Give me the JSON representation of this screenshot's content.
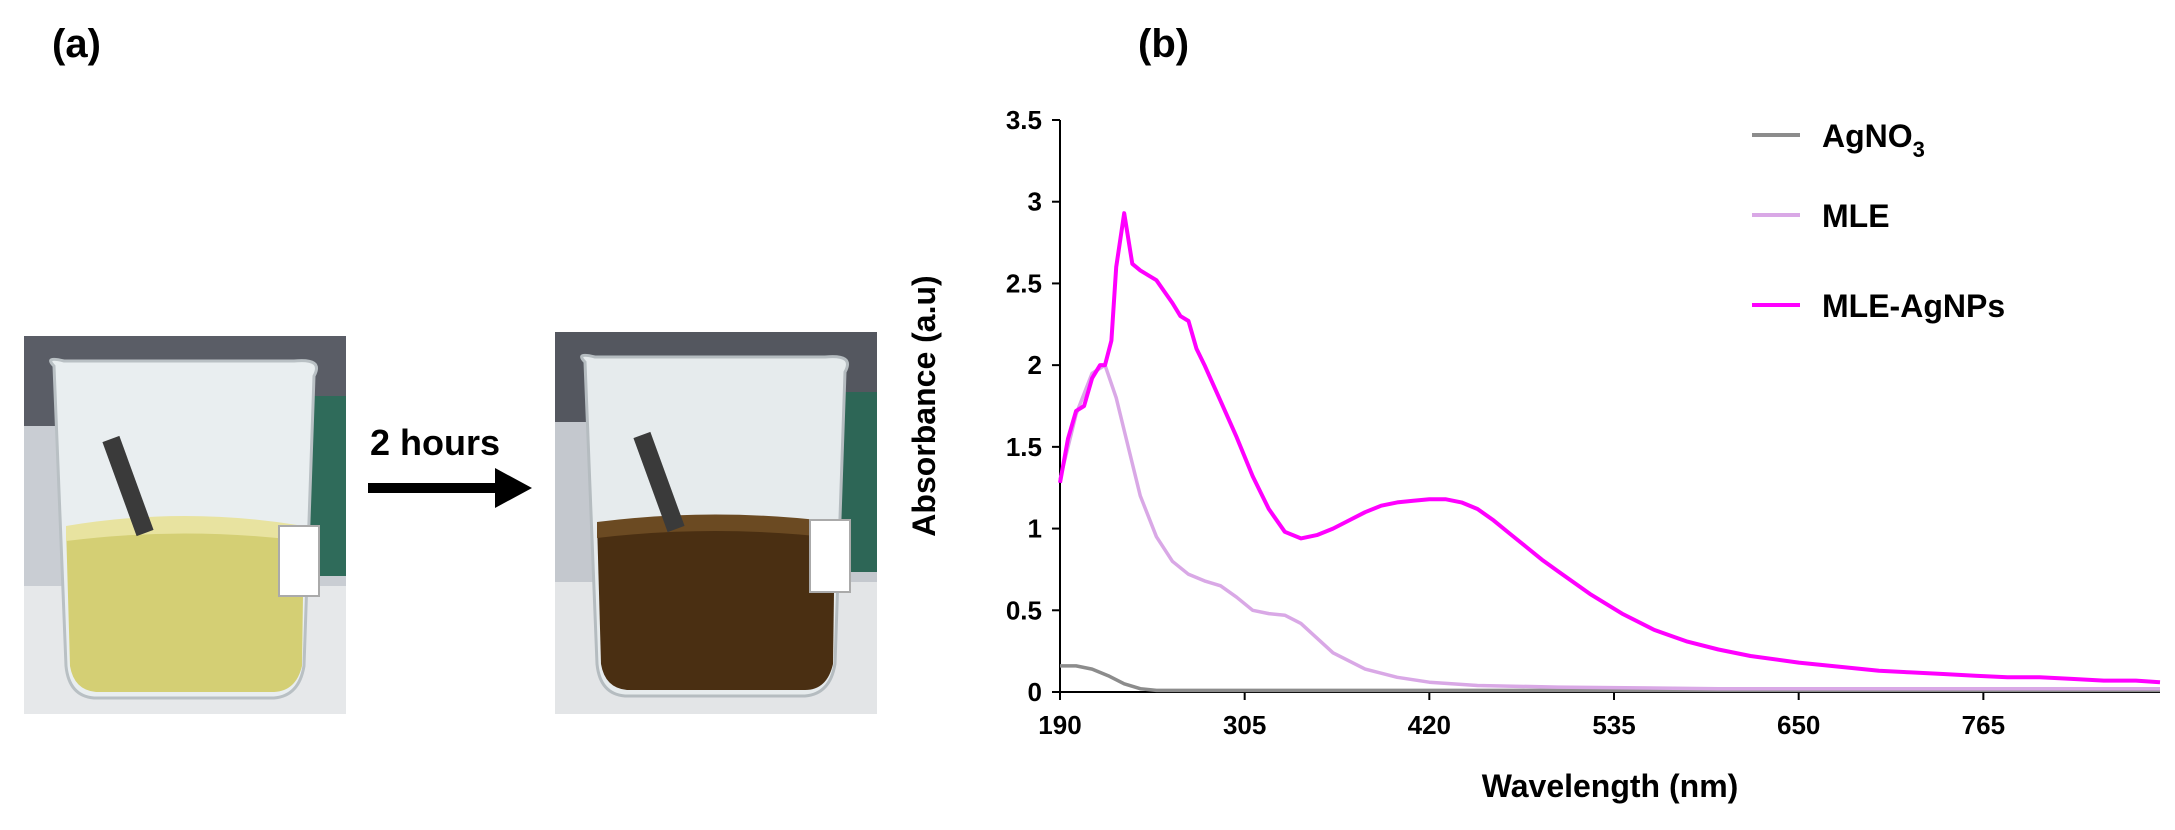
{
  "panels": {
    "a": "(a)",
    "b": "(b)"
  },
  "photos": {
    "before_desc": "beaker-yellow-extract",
    "after_desc": "beaker-dark-brown-agnps",
    "arrow_label": "2 hours"
  },
  "colors": {
    "agno3": "#8c8c8c",
    "mle": "#d9a8e6",
    "mle_agnps": "#ff00ff",
    "axis": "#000000",
    "beaker_yellow": "#d4cf74",
    "beaker_brown": "#4a2f12"
  },
  "chart_data": {
    "type": "line",
    "title": "",
    "xlabel": "Wavelength (nm)",
    "ylabel": "Absorbance (a.u)",
    "xlim": [
      190,
      875
    ],
    "ylim": [
      0,
      3.5
    ],
    "x_ticks": [
      190,
      305,
      420,
      535,
      650,
      765
    ],
    "x_tick_labels": [
      "190",
      "305",
      "420",
      "535",
      "650",
      "765"
    ],
    "y_ticks": [
      0,
      0.5,
      1,
      1.5,
      2,
      2.5,
      3,
      3.5
    ],
    "y_tick_labels": [
      "0",
      "0.5",
      "1",
      "1.5",
      "2",
      "2.5",
      "3",
      "3.5"
    ],
    "legend_position": "top-right",
    "series": [
      {
        "name": "AgNO3",
        "legend_main": "AgNO",
        "legend_sub": "3",
        "color": "#8c8c8c",
        "x": [
          190,
          200,
          210,
          220,
          230,
          240,
          250,
          300,
          400,
          600,
          875
        ],
        "y": [
          0.16,
          0.16,
          0.14,
          0.1,
          0.05,
          0.02,
          0.01,
          0.01,
          0.01,
          0.01,
          0.01
        ]
      },
      {
        "name": "MLE",
        "legend_main": "MLE",
        "legend_sub": "",
        "color": "#d9a8e6",
        "x": [
          190,
          200,
          210,
          218,
          225,
          230,
          240,
          250,
          260,
          270,
          280,
          290,
          300,
          310,
          320,
          330,
          340,
          350,
          360,
          380,
          400,
          420,
          450,
          500,
          600,
          700,
          875
        ],
        "y": [
          1.3,
          1.7,
          1.95,
          2.0,
          1.8,
          1.6,
          1.2,
          0.95,
          0.8,
          0.72,
          0.68,
          0.65,
          0.58,
          0.5,
          0.48,
          0.47,
          0.42,
          0.33,
          0.24,
          0.14,
          0.09,
          0.06,
          0.04,
          0.03,
          0.02,
          0.02,
          0.02
        ]
      },
      {
        "name": "MLE-AgNPs",
        "legend_main": "MLE-AgNPs",
        "legend_sub": "",
        "color": "#ff00ff",
        "x": [
          190,
          195,
          200,
          205,
          210,
          215,
          218,
          222,
          225,
          230,
          235,
          240,
          245,
          250,
          255,
          260,
          265,
          270,
          275,
          280,
          290,
          300,
          310,
          320,
          330,
          340,
          350,
          360,
          370,
          380,
          390,
          400,
          410,
          420,
          430,
          440,
          450,
          460,
          470,
          480,
          490,
          500,
          520,
          540,
          560,
          580,
          600,
          620,
          650,
          680,
          700,
          720,
          740,
          760,
          780,
          800,
          820,
          840,
          860,
          875
        ],
        "y": [
          1.28,
          1.55,
          1.72,
          1.75,
          1.92,
          2.0,
          2.0,
          2.15,
          2.6,
          2.93,
          2.62,
          2.58,
          2.55,
          2.52,
          2.45,
          2.38,
          2.3,
          2.27,
          2.1,
          2.0,
          1.78,
          1.56,
          1.32,
          1.12,
          0.98,
          0.94,
          0.96,
          1.0,
          1.05,
          1.1,
          1.14,
          1.16,
          1.17,
          1.18,
          1.18,
          1.16,
          1.12,
          1.05,
          0.97,
          0.89,
          0.81,
          0.74,
          0.6,
          0.48,
          0.38,
          0.31,
          0.26,
          0.22,
          0.18,
          0.15,
          0.13,
          0.12,
          0.11,
          0.1,
          0.09,
          0.09,
          0.08,
          0.07,
          0.07,
          0.06
        ]
      }
    ]
  }
}
